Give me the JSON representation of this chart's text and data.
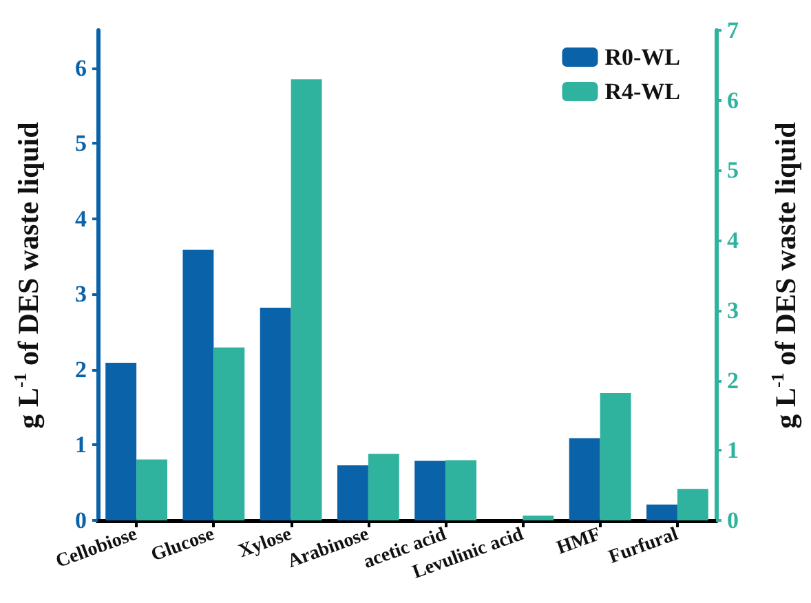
{
  "chart_data": {
    "type": "bar",
    "categories": [
      "Cellobiose",
      "Glucose",
      "Xylose",
      "Arabinose",
      "acetic acid",
      "Levulinic acid",
      "HMF",
      "Furfural"
    ],
    "series": [
      {
        "name": "R0-WL",
        "color": "#0a62a9",
        "values": [
          2.09,
          3.59,
          2.82,
          0.73,
          0.79,
          0,
          1.09,
          0.21
        ]
      },
      {
        "name": "R4-WL",
        "color": "#2fb39e",
        "axis": "y2",
        "values": [
          0.87,
          2.47,
          6.3,
          0.95,
          0.86,
          0.07,
          1.82,
          0.45
        ]
      }
    ],
    "ylabel": "g L$^{-1}$ of DES waste liquid",
    "y2label": "g L$^{-1}$ of DES waste liquid",
    "ylim": [
      0,
      6.5
    ],
    "yticks": [
      0,
      1,
      2,
      3,
      4,
      5,
      6
    ],
    "y2lim": [
      0,
      7
    ],
    "y2ticks": [
      0,
      1,
      2,
      3,
      4,
      5,
      6,
      7
    ],
    "legend": "top right",
    "grid": false
  }
}
